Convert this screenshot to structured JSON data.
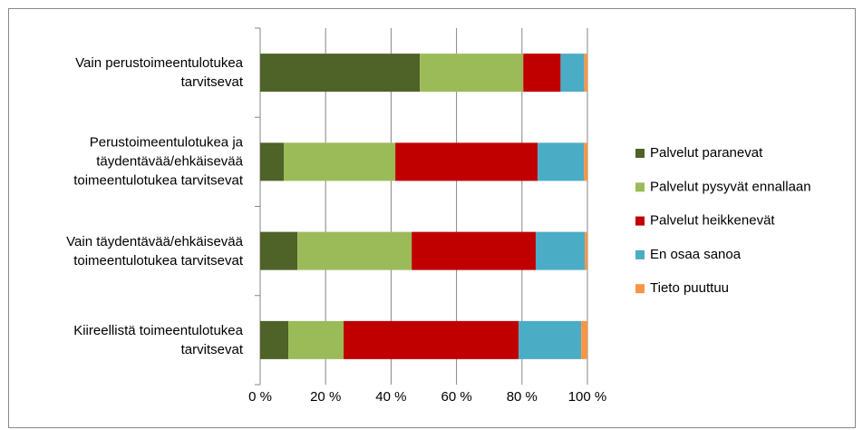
{
  "chart_data": {
    "type": "stacked-bar-horizontal",
    "categories": [
      "Vain perustoimeentulotukea\ntarvitsevat",
      "Perustoimeentulotukea ja\ntäydentävää/ehkäisevää\ntoimeentulotukea tarvitsevat",
      "Vain täydentävää/ehkäisevää\ntoimeentulotukea tarvitsevat",
      "Kiireellistä toimeentulotukea\ntarvitsevat"
    ],
    "series": [
      {
        "name": "Palvelut paranevat",
        "color": "#4f6228",
        "values": [
          48.8,
          7.2,
          11.4,
          8.6
        ]
      },
      {
        "name": "Palvelut pysyvät ennallaan",
        "color": "#9bbb59",
        "values": [
          31.6,
          34.1,
          34.9,
          16.9
        ]
      },
      {
        "name": "Palvelut heikkenevät",
        "color": "#c00000",
        "values": [
          11.4,
          43.5,
          37.9,
          53.5
        ]
      },
      {
        "name": "En osaa sanoa",
        "color": "#4bacc6",
        "values": [
          7.2,
          14.1,
          15.0,
          19.1
        ]
      },
      {
        "name": "Tieto puuttuu",
        "color": "#f79646",
        "values": [
          1.0,
          1.1,
          0.8,
          1.9
        ]
      }
    ],
    "xlim": [
      0,
      100
    ],
    "xticks": [
      {
        "value": 0,
        "label": "0 %"
      },
      {
        "value": 20,
        "label": "20 %"
      },
      {
        "value": 40,
        "label": "40 %"
      },
      {
        "value": 60,
        "label": "60 %"
      },
      {
        "value": 80,
        "label": "80 %"
      },
      {
        "value": 100,
        "label": "100 %"
      }
    ],
    "grid": true,
    "legend": "right"
  }
}
